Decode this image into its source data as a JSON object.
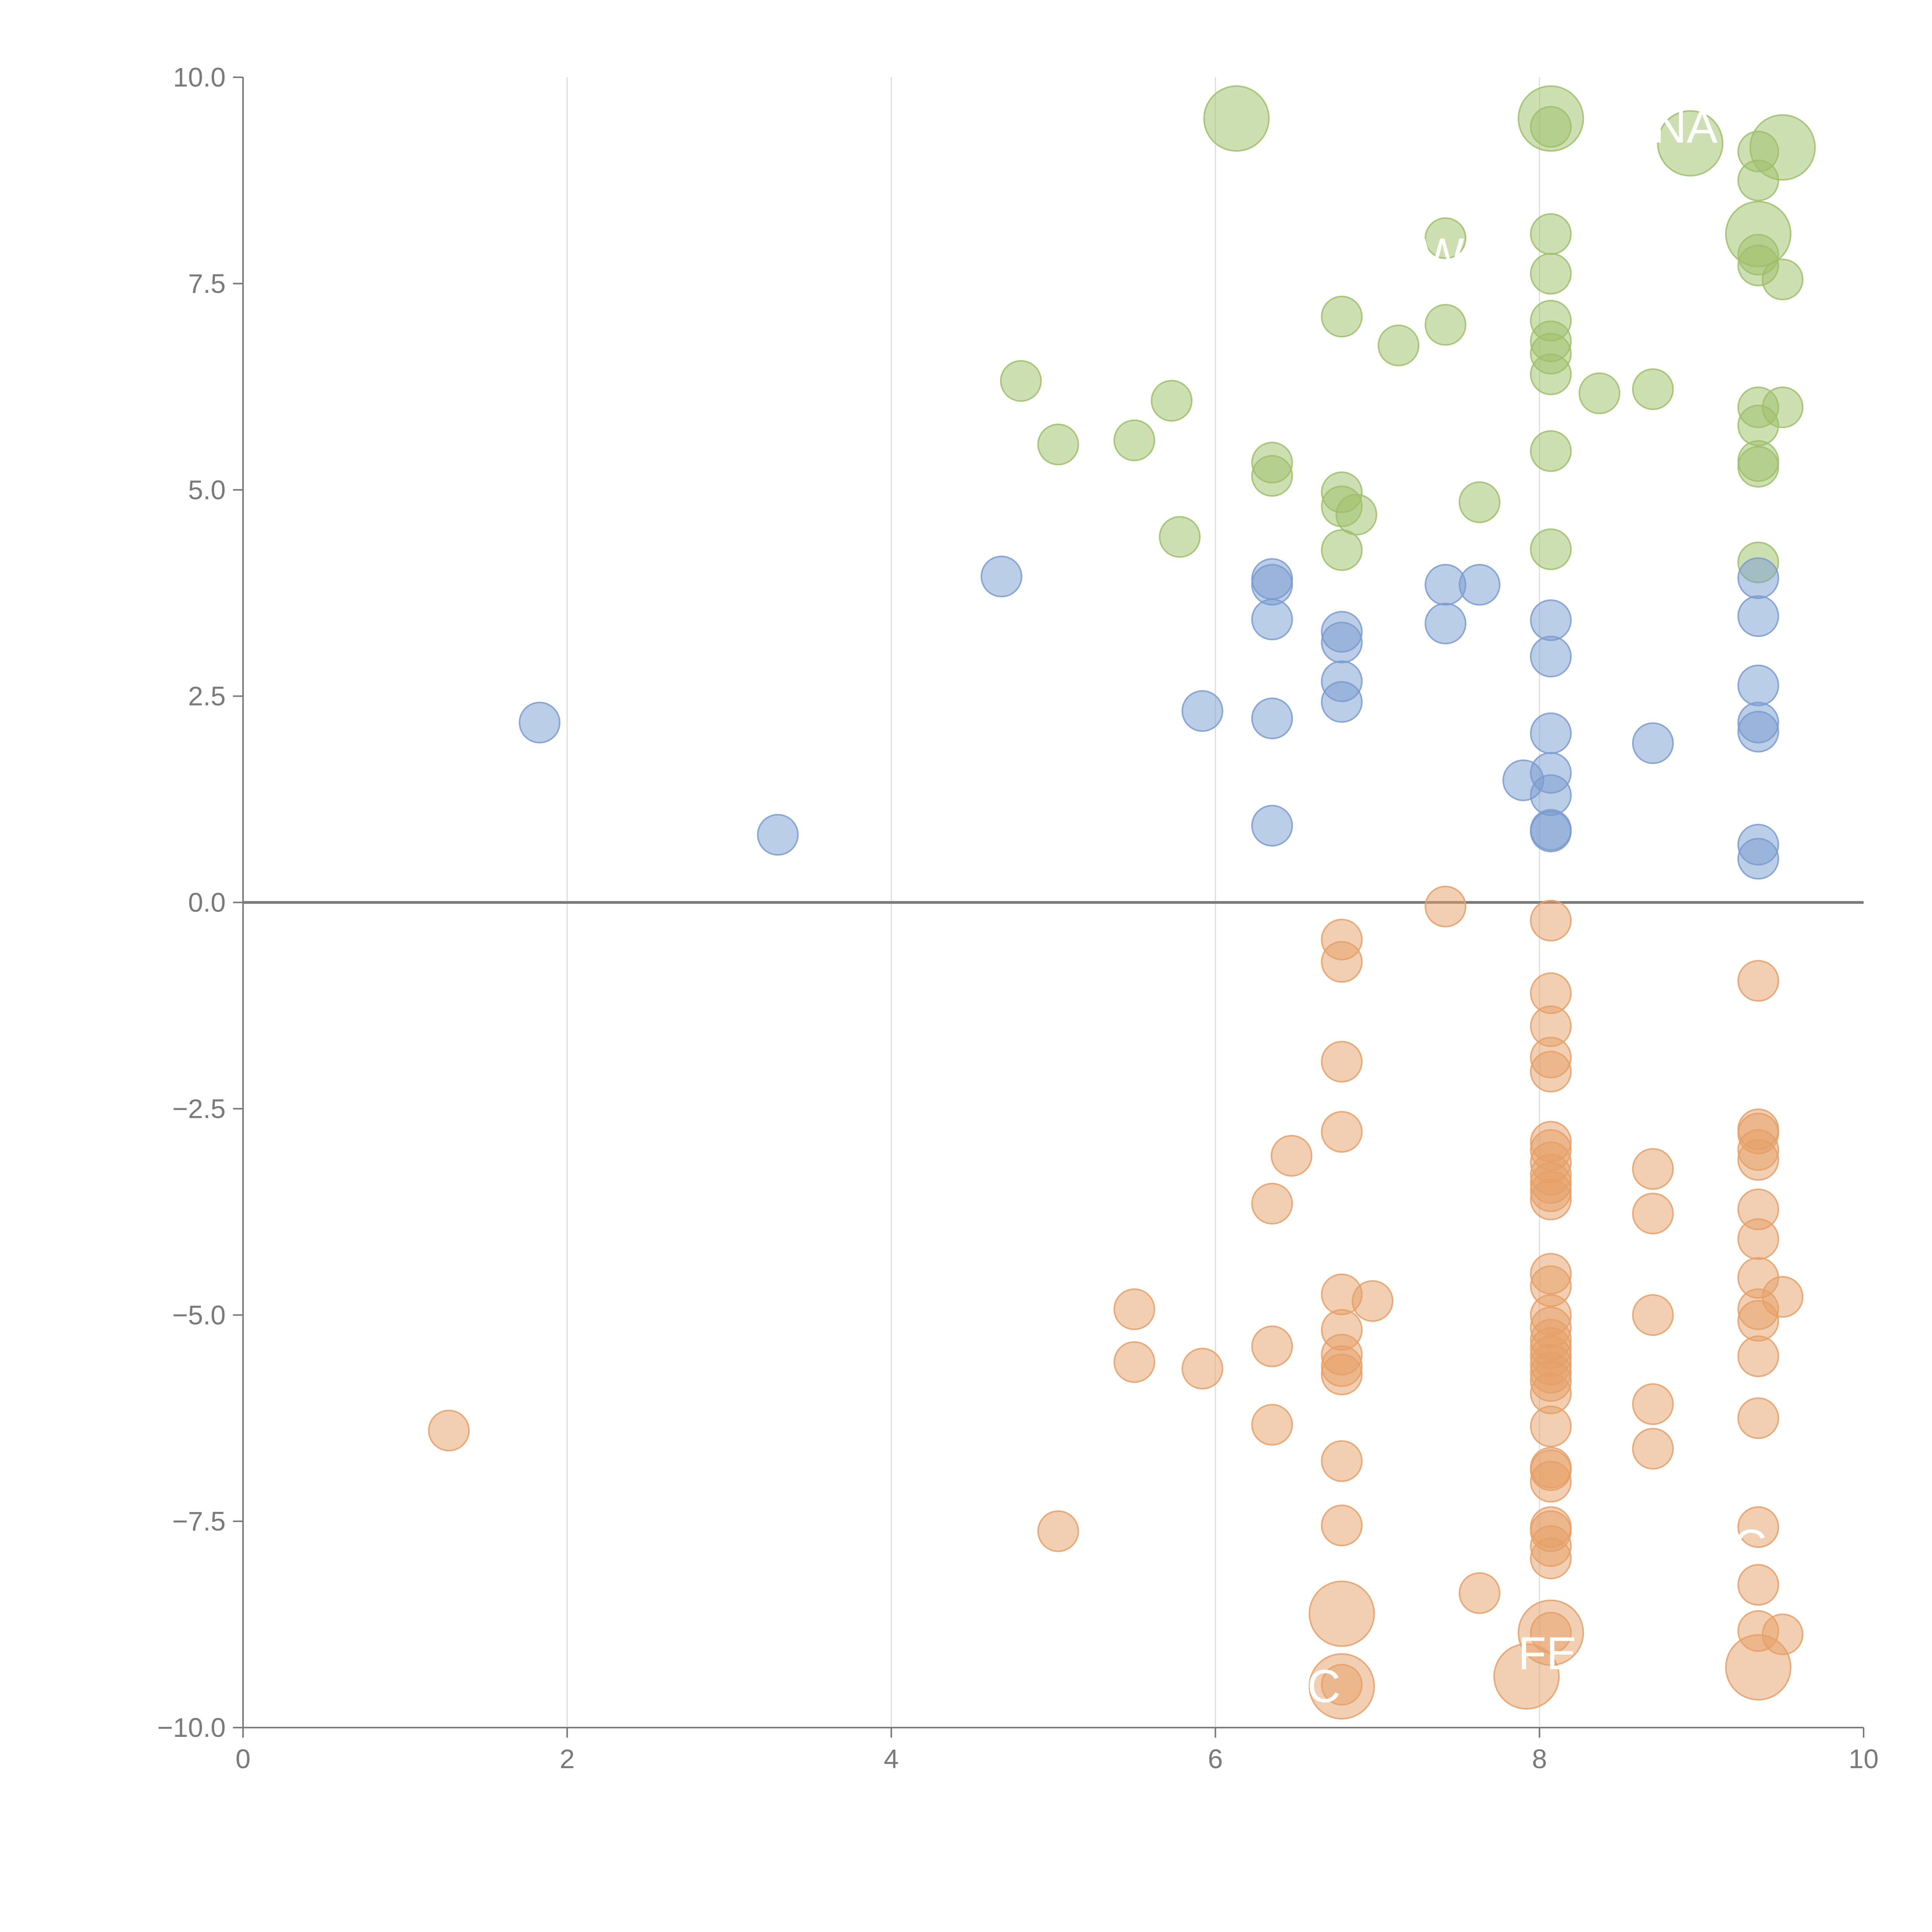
{
  "chart_data": {
    "type": "scatter",
    "title": "",
    "xlabel": "",
    "ylabel": "",
    "xlim": [
      0,
      10
    ],
    "ylim": [
      -10,
      10
    ],
    "x_ticks": [
      "0",
      "2",
      "4",
      "6",
      "8",
      "10"
    ],
    "y_ticks": [
      "10.0",
      "7.5",
      "5.0",
      "2.5",
      "0.0",
      "−2.5",
      "−5.0",
      "−7.5",
      "−10.0"
    ],
    "x_tick_values": [
      0,
      2,
      4,
      6,
      8,
      10
    ],
    "y_tick_values": [
      10,
      7.5,
      5,
      2.5,
      0,
      -2.5,
      -5,
      -7.5,
      -10
    ],
    "zero_line": 0,
    "grid": "vertical",
    "legend": "none",
    "colors": {
      "green": "#9dc06a",
      "blue": "#7a9bcf",
      "orange": "#e5a068",
      "axis": "#7a7a7a",
      "grid": "#dddddd",
      "zero_line": "#7a7a7a"
    },
    "series": [
      {
        "name": "green",
        "color": "#9dc06a",
        "points": [
          {
            "x": 6.13,
            "y": 9.5,
            "size": 2.6
          },
          {
            "x": 8.07,
            "y": 9.5,
            "size": 2.6
          },
          {
            "x": 8.07,
            "y": 9.4,
            "size": 1
          },
          {
            "x": 8.93,
            "y": 9.2,
            "size": 2.6
          },
          {
            "x": 9.5,
            "y": 9.15,
            "size": 2.6
          },
          {
            "x": 9.35,
            "y": 9.1,
            "size": 1
          },
          {
            "x": 9.35,
            "y": 8.75,
            "size": 1
          },
          {
            "x": 9.35,
            "y": 8.1,
            "size": 2.6
          },
          {
            "x": 7.42,
            "y": 8.05,
            "size": 1
          },
          {
            "x": 8.07,
            "y": 8.1,
            "size": 1
          },
          {
            "x": 9.35,
            "y": 7.85,
            "size": 1
          },
          {
            "x": 9.35,
            "y": 7.72,
            "size": 1
          },
          {
            "x": 8.07,
            "y": 7.62,
            "size": 1
          },
          {
            "x": 9.5,
            "y": 7.55,
            "size": 1
          },
          {
            "x": 6.78,
            "y": 7.1,
            "size": 1
          },
          {
            "x": 7.42,
            "y": 7.0,
            "size": 1
          },
          {
            "x": 8.07,
            "y": 7.05,
            "size": 1
          },
          {
            "x": 8.07,
            "y": 6.8,
            "size": 1
          },
          {
            "x": 7.13,
            "y": 6.75,
            "size": 1
          },
          {
            "x": 8.07,
            "y": 6.65,
            "size": 1
          },
          {
            "x": 8.07,
            "y": 6.4,
            "size": 1
          },
          {
            "x": 4.8,
            "y": 6.32,
            "size": 1
          },
          {
            "x": 8.7,
            "y": 6.22,
            "size": 1
          },
          {
            "x": 8.37,
            "y": 6.17,
            "size": 1
          },
          {
            "x": 5.73,
            "y": 6.08,
            "size": 1
          },
          {
            "x": 9.35,
            "y": 6.0,
            "size": 1
          },
          {
            "x": 9.5,
            "y": 6.0,
            "size": 1
          },
          {
            "x": 9.35,
            "y": 5.78,
            "size": 1
          },
          {
            "x": 5.5,
            "y": 5.6,
            "size": 1
          },
          {
            "x": 5.03,
            "y": 5.55,
            "size": 1
          },
          {
            "x": 8.07,
            "y": 5.47,
            "size": 1
          },
          {
            "x": 6.35,
            "y": 5.33,
            "size": 1
          },
          {
            "x": 9.35,
            "y": 5.35,
            "size": 1
          },
          {
            "x": 9.35,
            "y": 5.28,
            "size": 1
          },
          {
            "x": 6.35,
            "y": 5.17,
            "size": 1
          },
          {
            "x": 6.78,
            "y": 4.97,
            "size": 1
          },
          {
            "x": 6.78,
            "y": 4.8,
            "size": 1
          },
          {
            "x": 7.63,
            "y": 4.85,
            "size": 1
          },
          {
            "x": 6.87,
            "y": 4.7,
            "size": 1
          },
          {
            "x": 5.78,
            "y": 4.43,
            "size": 1
          },
          {
            "x": 6.78,
            "y": 4.27,
            "size": 1
          },
          {
            "x": 8.07,
            "y": 4.28,
            "size": 1
          },
          {
            "x": 9.35,
            "y": 4.12,
            "size": 1
          }
        ]
      },
      {
        "name": "blue",
        "color": "#7a9bcf",
        "points": [
          {
            "x": 4.68,
            "y": 3.95,
            "size": 1
          },
          {
            "x": 6.35,
            "y": 3.92,
            "size": 1
          },
          {
            "x": 6.35,
            "y": 3.85,
            "size": 1
          },
          {
            "x": 7.42,
            "y": 3.85,
            "size": 1
          },
          {
            "x": 7.63,
            "y": 3.85,
            "size": 1
          },
          {
            "x": 9.35,
            "y": 3.93,
            "size": 1
          },
          {
            "x": 6.35,
            "y": 3.43,
            "size": 1
          },
          {
            "x": 7.42,
            "y": 3.38,
            "size": 1
          },
          {
            "x": 8.07,
            "y": 3.42,
            "size": 1
          },
          {
            "x": 9.35,
            "y": 3.47,
            "size": 1
          },
          {
            "x": 6.78,
            "y": 3.28,
            "size": 1
          },
          {
            "x": 6.78,
            "y": 3.15,
            "size": 1
          },
          {
            "x": 8.07,
            "y": 2.98,
            "size": 1
          },
          {
            "x": 6.78,
            "y": 2.68,
            "size": 1
          },
          {
            "x": 9.35,
            "y": 2.63,
            "size": 1
          },
          {
            "x": 6.78,
            "y": 2.43,
            "size": 1
          },
          {
            "x": 5.92,
            "y": 2.32,
            "size": 1
          },
          {
            "x": 6.35,
            "y": 2.23,
            "size": 1
          },
          {
            "x": 1.83,
            "y": 2.18,
            "size": 1
          },
          {
            "x": 9.35,
            "y": 2.18,
            "size": 1
          },
          {
            "x": 9.35,
            "y": 2.07,
            "size": 1
          },
          {
            "x": 8.07,
            "y": 2.05,
            "size": 1
          },
          {
            "x": 8.7,
            "y": 1.93,
            "size": 1
          },
          {
            "x": 8.07,
            "y": 1.57,
            "size": 1
          },
          {
            "x": 7.9,
            "y": 1.48,
            "size": 1
          },
          {
            "x": 8.07,
            "y": 1.3,
            "size": 1
          },
          {
            "x": 6.35,
            "y": 0.93,
            "size": 1
          },
          {
            "x": 8.07,
            "y": 0.88,
            "size": 1
          },
          {
            "x": 8.07,
            "y": 0.86,
            "size": 1
          },
          {
            "x": 3.3,
            "y": 0.82,
            "size": 1
          },
          {
            "x": 9.35,
            "y": 0.7,
            "size": 1
          },
          {
            "x": 9.35,
            "y": 0.53,
            "size": 1
          }
        ]
      },
      {
        "name": "orange",
        "color": "#e5a068",
        "points": [
          {
            "x": 7.42,
            "y": -0.05,
            "size": 1
          },
          {
            "x": 8.07,
            "y": -0.22,
            "size": 1
          },
          {
            "x": 6.78,
            "y": -0.45,
            "size": 1
          },
          {
            "x": 6.78,
            "y": -0.72,
            "size": 1
          },
          {
            "x": 9.35,
            "y": -0.95,
            "size": 1
          },
          {
            "x": 8.07,
            "y": -1.1,
            "size": 1
          },
          {
            "x": 8.07,
            "y": -1.5,
            "size": 1
          },
          {
            "x": 6.78,
            "y": -1.93,
            "size": 1
          },
          {
            "x": 8.07,
            "y": -1.88,
            "size": 1
          },
          {
            "x": 8.07,
            "y": -2.05,
            "size": 1
          },
          {
            "x": 6.78,
            "y": -2.78,
            "size": 1
          },
          {
            "x": 9.35,
            "y": -2.75,
            "size": 1
          },
          {
            "x": 9.35,
            "y": -2.8,
            "size": 1
          },
          {
            "x": 8.07,
            "y": -2.9,
            "size": 1
          },
          {
            "x": 8.07,
            "y": -3.0,
            "size": 1
          },
          {
            "x": 6.47,
            "y": -3.07,
            "size": 1
          },
          {
            "x": 9.35,
            "y": -3.0,
            "size": 1
          },
          {
            "x": 9.35,
            "y": -3.12,
            "size": 1
          },
          {
            "x": 8.07,
            "y": -3.15,
            "size": 1
          },
          {
            "x": 8.7,
            "y": -3.23,
            "size": 1
          },
          {
            "x": 8.07,
            "y": -3.3,
            "size": 1
          },
          {
            "x": 8.07,
            "y": -3.4,
            "size": 1
          },
          {
            "x": 8.07,
            "y": -3.5,
            "size": 1
          },
          {
            "x": 8.07,
            "y": -3.6,
            "size": 1
          },
          {
            "x": 6.35,
            "y": -3.65,
            "size": 1
          },
          {
            "x": 9.35,
            "y": -3.72,
            "size": 1
          },
          {
            "x": 8.7,
            "y": -3.77,
            "size": 1
          },
          {
            "x": 9.35,
            "y": -4.08,
            "size": 1
          },
          {
            "x": 8.07,
            "y": -4.5,
            "size": 1
          },
          {
            "x": 9.35,
            "y": -4.55,
            "size": 1
          },
          {
            "x": 8.07,
            "y": -4.65,
            "size": 1
          },
          {
            "x": 6.78,
            "y": -4.75,
            "size": 1
          },
          {
            "x": 9.5,
            "y": -4.78,
            "size": 1
          },
          {
            "x": 6.97,
            "y": -4.83,
            "size": 1
          },
          {
            "x": 5.5,
            "y": -4.93,
            "size": 1
          },
          {
            "x": 9.35,
            "y": -4.93,
            "size": 1
          },
          {
            "x": 8.07,
            "y": -5.0,
            "size": 1
          },
          {
            "x": 8.7,
            "y": -5.0,
            "size": 1
          },
          {
            "x": 9.35,
            "y": -5.07,
            "size": 1
          },
          {
            "x": 8.07,
            "y": -5.15,
            "size": 1
          },
          {
            "x": 6.78,
            "y": -5.18,
            "size": 1
          },
          {
            "x": 8.07,
            "y": -5.3,
            "size": 1
          },
          {
            "x": 6.35,
            "y": -5.38,
            "size": 1
          },
          {
            "x": 8.07,
            "y": -5.4,
            "size": 1
          },
          {
            "x": 6.78,
            "y": -5.48,
            "size": 1
          },
          {
            "x": 9.35,
            "y": -5.5,
            "size": 1
          },
          {
            "x": 8.07,
            "y": -5.5,
            "size": 1
          },
          {
            "x": 5.5,
            "y": -5.57,
            "size": 1
          },
          {
            "x": 8.07,
            "y": -5.6,
            "size": 1
          },
          {
            "x": 6.78,
            "y": -5.62,
            "size": 1
          },
          {
            "x": 5.92,
            "y": -5.65,
            "size": 1
          },
          {
            "x": 8.07,
            "y": -5.7,
            "size": 1
          },
          {
            "x": 6.78,
            "y": -5.72,
            "size": 1
          },
          {
            "x": 8.07,
            "y": -5.8,
            "size": 1
          },
          {
            "x": 8.07,
            "y": -5.95,
            "size": 1
          },
          {
            "x": 8.7,
            "y": -6.08,
            "size": 1
          },
          {
            "x": 9.35,
            "y": -6.25,
            "size": 1
          },
          {
            "x": 6.35,
            "y": -6.33,
            "size": 1
          },
          {
            "x": 8.07,
            "y": -6.35,
            "size": 1
          },
          {
            "x": 1.27,
            "y": -6.4,
            "size": 1
          },
          {
            "x": 8.7,
            "y": -6.62,
            "size": 1
          },
          {
            "x": 6.78,
            "y": -6.77,
            "size": 1
          },
          {
            "x": 8.07,
            "y": -6.85,
            "size": 1
          },
          {
            "x": 8.07,
            "y": -6.88,
            "size": 1
          },
          {
            "x": 8.07,
            "y": -7.02,
            "size": 1
          },
          {
            "x": 6.78,
            "y": -7.55,
            "size": 1
          },
          {
            "x": 9.35,
            "y": -7.57,
            "size": 1
          },
          {
            "x": 5.03,
            "y": -7.62,
            "size": 1
          },
          {
            "x": 8.07,
            "y": -7.57,
            "size": 1
          },
          {
            "x": 8.07,
            "y": -7.62,
            "size": 1
          },
          {
            "x": 8.07,
            "y": -7.8,
            "size": 1
          },
          {
            "x": 8.07,
            "y": -7.95,
            "size": 1
          },
          {
            "x": 9.35,
            "y": -8.27,
            "size": 1
          },
          {
            "x": 7.63,
            "y": -8.37,
            "size": 1
          },
          {
            "x": 6.78,
            "y": -8.62,
            "size": 2.6
          },
          {
            "x": 9.35,
            "y": -8.83,
            "size": 1
          },
          {
            "x": 9.5,
            "y": -8.87,
            "size": 1
          },
          {
            "x": 8.07,
            "y": -8.85,
            "size": 2.6
          },
          {
            "x": 8.07,
            "y": -8.85,
            "size": 1
          },
          {
            "x": 9.35,
            "y": -9.27,
            "size": 2.6
          },
          {
            "x": 7.92,
            "y": -9.38,
            "size": 2.6
          },
          {
            "x": 6.78,
            "y": -9.48,
            "size": 1
          },
          {
            "x": 6.78,
            "y": -9.5,
            "size": 2.6
          }
        ]
      }
    ],
    "annotations": [
      {
        "text": "NA",
        "x": 8.9,
        "y": 9.4
      },
      {
        "text": "W",
        "x": 7.4,
        "y": 7.85
      },
      {
        "text": "C",
        "x": 9.3,
        "y": -7.8
      },
      {
        "text": "FE",
        "x": 8.05,
        "y": -9.1
      },
      {
        "text": "C",
        "x": 6.67,
        "y": -9.5
      }
    ]
  }
}
